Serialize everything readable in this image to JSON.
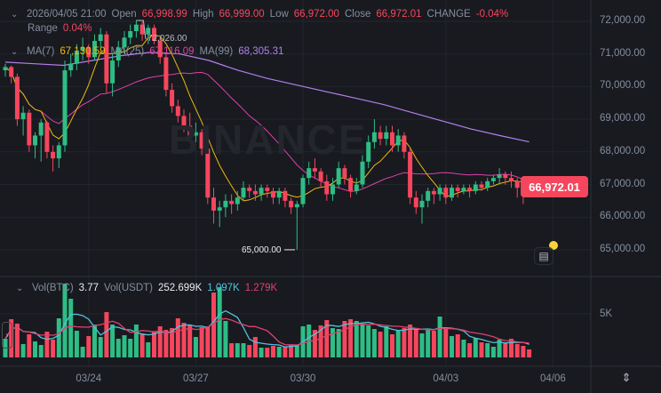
{
  "header": {
    "datetime": "2026/04/05 21:00",
    "open_label": "Open",
    "open": "66,998.99",
    "high_label": "High",
    "high": "66,999.00",
    "low_label": "Low",
    "low": "66,972.00",
    "close_label": "Close",
    "close": "66,972.01",
    "change_label": "CHANGE",
    "change": "-0.04%",
    "range_label": "Range",
    "range": "0.04%"
  },
  "ma_legend": {
    "ma7_label": "MA(7)",
    "ma7": "67,130.59",
    "ma25_label": "MA(25)",
    "ma25": "67,116.09",
    "ma99_label": "MA(99)",
    "ma99": "68,305.31"
  },
  "vol_legend": {
    "btc_label": "Vol(BTC)",
    "btc": "3.77",
    "usdt_label": "Vol(USDT)",
    "usdt": "252.699K",
    "ma1": "1.097K",
    "ma2": "1.279K"
  },
  "watermark": "BINANCE",
  "current_price": "66,972.01",
  "high_marker": "72,026.00",
  "low_marker": "65,000.00",
  "colors": {
    "up": "#2ebd85",
    "down": "#f6465d",
    "ma7": "#f0b90b",
    "ma25": "#e040a8",
    "ma99": "#b37feb",
    "vol_ma1": "#4fc3dc",
    "vol_ma2": "#e0406e",
    "background": "#181a20"
  },
  "chart_data": {
    "type": "candlestick",
    "y_ticks": [
      "72,000.00",
      "71,000.00",
      "70,000.00",
      "69,000.00",
      "68,000.00",
      "67,000.00",
      "66,000.00",
      "65,000.00"
    ],
    "ylim": [
      64600,
      72600
    ],
    "x_ticks": [
      {
        "label": "03/24",
        "index": 14
      },
      {
        "label": "03/27",
        "index": 32
      },
      {
        "label": "03/30",
        "index": 50
      },
      {
        "label": "04/03",
        "index": 74
      },
      {
        "label": "04/06",
        "index": 92
      }
    ],
    "vol_ticks": [
      "5K"
    ],
    "candles_ohlcv": [
      [
        70500,
        70700,
        70300,
        70600,
        2.1
      ],
      [
        70600,
        70650,
        70100,
        70300,
        4.3
      ],
      [
        70300,
        70400,
        68800,
        69000,
        3.8
      ],
      [
        69000,
        69400,
        68500,
        69200,
        1.5
      ],
      [
        69200,
        69300,
        68000,
        68200,
        2.6
      ],
      [
        68200,
        68600,
        67800,
        68500,
        1.8
      ],
      [
        68500,
        69000,
        67700,
        68900,
        1.4
      ],
      [
        68900,
        68950,
        67800,
        68000,
        2.9
      ],
      [
        68000,
        68200,
        67400,
        67800,
        2.0
      ],
      [
        67800,
        68300,
        67500,
        68200,
        4.4
      ],
      [
        68200,
        70800,
        68000,
        70500,
        8.3
      ],
      [
        70500,
        71000,
        70300,
        70700,
        6.6
      ],
      [
        70700,
        71300,
        70500,
        71100,
        3.0
      ],
      [
        71100,
        71500,
        70800,
        71200,
        1.2
      ],
      [
        71200,
        71300,
        70700,
        70900,
        2.4
      ],
      [
        70900,
        71600,
        70800,
        71400,
        3.7
      ],
      [
        71400,
        71800,
        71200,
        71600,
        2.3
      ],
      [
        71600,
        71700,
        69800,
        70100,
        5.1
      ],
      [
        70100,
        71000,
        69700,
        70800,
        3.7
      ],
      [
        70800,
        71400,
        70600,
        71200,
        2.1
      ],
      [
        71200,
        71700,
        71000,
        71500,
        2.5
      ],
      [
        71500,
        71900,
        71300,
        71700,
        2.1
      ],
      [
        71700,
        72026,
        71500,
        71900,
        3.7
      ],
      [
        71900,
        72000,
        71400,
        71600,
        2.7
      ],
      [
        71600,
        71900,
        71300,
        71800,
        1.7
      ],
      [
        71800,
        71900,
        71300,
        71400,
        2.9
      ],
      [
        71400,
        71500,
        70700,
        70900,
        3.5
      ],
      [
        70900,
        71000,
        69700,
        69900,
        3.1
      ],
      [
        69900,
        70100,
        69200,
        69400,
        3.3
      ],
      [
        69400,
        69600,
        68900,
        69100,
        4.4
      ],
      [
        69100,
        69300,
        68600,
        68800,
        3.9
      ],
      [
        68800,
        69200,
        68300,
        68500,
        3.6
      ],
      [
        68500,
        68900,
        68300,
        68600,
        2.3
      ],
      [
        68600,
        68700,
        67900,
        68100,
        3.4
      ],
      [
        68100,
        68200,
        66400,
        66600,
        3.5
      ],
      [
        66600,
        66900,
        65800,
        66200,
        7.3
      ],
      [
        66200,
        66500,
        65700,
        66300,
        7.9
      ],
      [
        66300,
        66700,
        66000,
        66500,
        4.1
      ],
      [
        66500,
        66700,
        66100,
        66400,
        1.6
      ],
      [
        66400,
        66800,
        66200,
        66600,
        1.6
      ],
      [
        66600,
        67100,
        66500,
        66900,
        1.6
      ],
      [
        66900,
        67000,
        66600,
        66800,
        1.4
      ],
      [
        66800,
        67000,
        66500,
        66700,
        2.3
      ],
      [
        66700,
        67000,
        66500,
        66900,
        1.1
      ],
      [
        66900,
        67000,
        66600,
        66800,
        1.1
      ],
      [
        66800,
        66900,
        66400,
        66600,
        1.3
      ],
      [
        66600,
        66900,
        66400,
        66800,
        1.2
      ],
      [
        66800,
        66900,
        66300,
        66500,
        1.2
      ],
      [
        66500,
        66600,
        66100,
        66300,
        1.4
      ],
      [
        66300,
        66500,
        65000,
        66400,
        1.4
      ],
      [
        66400,
        67300,
        66300,
        67200,
        3.5
      ],
      [
        67200,
        67700,
        67000,
        67500,
        3.7
      ],
      [
        67500,
        67800,
        67200,
        67400,
        3.1
      ],
      [
        67400,
        67500,
        66900,
        67100,
        3.6
      ],
      [
        67100,
        67300,
        66500,
        66700,
        4.2
      ],
      [
        66700,
        67200,
        66500,
        67000,
        3.3
      ],
      [
        67000,
        67700,
        66900,
        67500,
        3.2
      ],
      [
        67500,
        67600,
        67000,
        67200,
        4.1
      ],
      [
        67200,
        67300,
        66600,
        66800,
        4.3
      ],
      [
        66800,
        67200,
        66700,
        67000,
        4.1
      ],
      [
        67000,
        67900,
        66900,
        67700,
        3.7
      ],
      [
        67700,
        68500,
        67500,
        68300,
        3.6
      ],
      [
        68300,
        69000,
        68100,
        68600,
        3.2
      ],
      [
        68600,
        68800,
        68200,
        68400,
        2.9
      ],
      [
        68400,
        68800,
        68200,
        68600,
        3.5
      ],
      [
        68600,
        68800,
        68000,
        68200,
        2.6
      ],
      [
        68200,
        68700,
        68000,
        68500,
        3.0
      ],
      [
        68500,
        68600,
        67800,
        68000,
        3.3
      ],
      [
        68000,
        68100,
        66400,
        66600,
        3.7
      ],
      [
        66600,
        66800,
        66100,
        66300,
        3.2
      ],
      [
        66300,
        66700,
        65800,
        66500,
        2.7
      ],
      [
        66500,
        66900,
        66300,
        66800,
        3.1
      ],
      [
        66800,
        66900,
        66400,
        66700,
        3.0
      ],
      [
        66700,
        67000,
        66500,
        66900,
        4.6
      ],
      [
        66900,
        67000,
        66400,
        66600,
        3.3
      ],
      [
        66600,
        67000,
        66500,
        66900,
        2.4
      ],
      [
        66900,
        67000,
        66600,
        66800,
        2.6
      ],
      [
        66800,
        67000,
        66700,
        66900,
        2.0
      ],
      [
        66900,
        67000,
        66600,
        66800,
        1.6
      ],
      [
        66800,
        67100,
        66700,
        67000,
        2.2
      ],
      [
        67000,
        67100,
        66800,
        66900,
        1.7
      ],
      [
        66900,
        67200,
        66800,
        67100,
        1.6
      ],
      [
        67100,
        67300,
        67000,
        67200,
        1.2
      ],
      [
        67200,
        67500,
        67000,
        67300,
        2.0
      ],
      [
        67300,
        67400,
        67000,
        67200,
        1.6
      ],
      [
        67200,
        67400,
        66900,
        67100,
        2.1
      ],
      [
        67100,
        67200,
        66600,
        66900,
        1.5
      ],
      [
        66900,
        67000,
        66400,
        66700,
        1.3
      ],
      [
        66998.99,
        66999,
        66972,
        66972.01,
        0.9
      ]
    ],
    "ma99_points": [
      70750,
      70700,
      70650,
      70800,
      70950,
      71050,
      71000,
      70800,
      70500,
      70250,
      70050,
      69850,
      69650,
      69450,
      69200,
      68950,
      68700,
      68500,
      68305.31
    ]
  }
}
